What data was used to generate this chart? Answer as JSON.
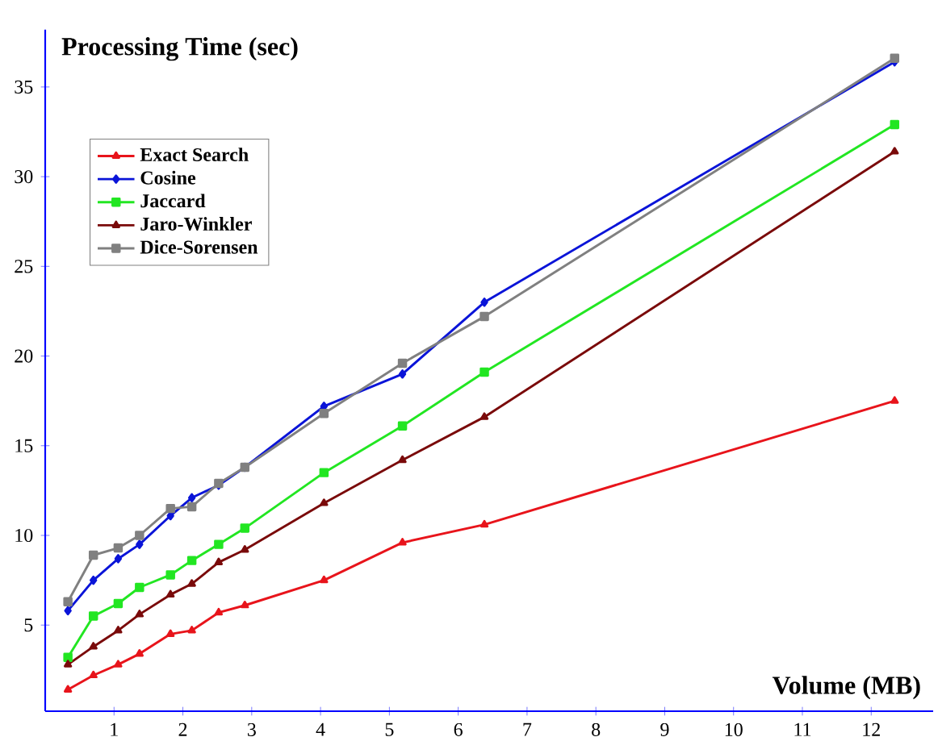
{
  "chart_data": {
    "type": "line",
    "ylabel": "Processing Time (sec)",
    "xlabel": "Volume (MB)",
    "xlim": [
      0,
      12.9
    ],
    "ylim": [
      0.2,
      38.2
    ],
    "xticks": [
      1,
      2,
      3,
      4,
      5,
      6,
      7,
      8,
      9,
      10,
      11,
      12
    ],
    "yticks": [
      5,
      10,
      15,
      20,
      25,
      30,
      35
    ],
    "legend": "top left",
    "grid": false,
    "line_style": "solid",
    "series": [
      {
        "name": "Exact Search",
        "color": "#e8141b",
        "marker": "triangle",
        "x": [
          0.33,
          0.7,
          1.06,
          1.37,
          1.82,
          2.13,
          2.52,
          2.9,
          4.05,
          5.19,
          6.38,
          12.34
        ],
        "values": [
          1.4,
          2.2,
          2.8,
          3.4,
          4.5,
          4.7,
          5.7,
          6.1,
          7.5,
          9.6,
          10.6,
          17.5
        ]
      },
      {
        "name": "Cosine",
        "color": "#0a14d8",
        "marker": "diamond",
        "x": [
          0.33,
          0.7,
          1.06,
          1.37,
          1.82,
          2.13,
          2.52,
          2.9,
          4.05,
          5.19,
          6.38,
          12.34
        ],
        "values": [
          5.8,
          7.5,
          8.7,
          9.5,
          11.1,
          12.1,
          12.8,
          13.8,
          17.2,
          19.0,
          23.0,
          36.4
        ]
      },
      {
        "name": "Jaccard",
        "color": "#22e622",
        "marker": "square",
        "x": [
          0.33,
          0.7,
          1.06,
          1.37,
          1.82,
          2.13,
          2.52,
          2.9,
          4.05,
          5.19,
          6.38,
          12.34
        ],
        "values": [
          3.2,
          5.5,
          6.2,
          7.1,
          7.8,
          8.6,
          9.5,
          10.4,
          13.5,
          16.1,
          19.1,
          32.9
        ]
      },
      {
        "name": "Jaro-Winkler",
        "color": "#7a0a0a",
        "marker": "triangle",
        "x": [
          0.33,
          0.7,
          1.06,
          1.37,
          1.82,
          2.13,
          2.52,
          2.9,
          4.05,
          5.19,
          6.38,
          12.34
        ],
        "values": [
          2.8,
          3.8,
          4.7,
          5.6,
          6.7,
          7.3,
          8.5,
          9.2,
          11.8,
          14.2,
          16.6,
          31.4
        ]
      },
      {
        "name": "Dice-Sorensen",
        "color": "#808080",
        "marker": "square",
        "x": [
          0.33,
          0.7,
          1.06,
          1.37,
          1.82,
          2.13,
          2.52,
          2.9,
          4.05,
          5.19,
          6.38,
          12.34
        ],
        "values": [
          6.3,
          8.9,
          9.3,
          10.0,
          11.5,
          11.6,
          12.9,
          13.8,
          16.8,
          19.6,
          22.2,
          36.6
        ]
      }
    ]
  }
}
